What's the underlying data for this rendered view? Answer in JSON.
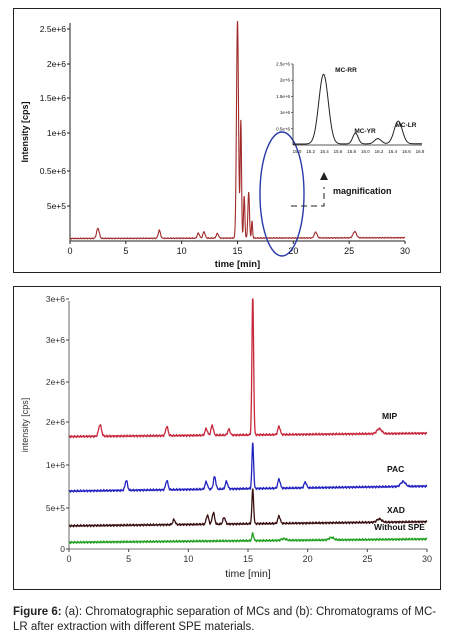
{
  "chart_data": [
    {
      "type": "line",
      "panel": "a",
      "xlabel": "time [min]",
      "ylabel": "Intensity [cps]",
      "xlim": [
        0,
        30
      ],
      "ylim": [
        0,
        2600000
      ],
      "xticks": [
        "0",
        "5",
        "10",
        "15",
        "20",
        "25",
        "30"
      ],
      "yticks": [
        "5e+5",
        "0.5e+6",
        "1e+6",
        "1.5e+6",
        "2e+6",
        "2.5e+6"
      ],
      "line_color": "#a02a2a",
      "baseline": 30000,
      "peaks": [
        {
          "x": 2.5,
          "y": 120000,
          "w": 0.12
        },
        {
          "x": 8.0,
          "y": 95000,
          "w": 0.1
        },
        {
          "x": 11.5,
          "y": 60000,
          "w": 0.1
        },
        {
          "x": 12.0,
          "y": 75000,
          "w": 0.1
        },
        {
          "x": 13.2,
          "y": 55000,
          "w": 0.1
        },
        {
          "x": 15.0,
          "y": 2600000,
          "w": 0.09
        },
        {
          "x": 15.3,
          "y": 1400000,
          "w": 0.06
        },
        {
          "x": 15.6,
          "y": 500000,
          "w": 0.06
        },
        {
          "x": 16.0,
          "y": 550000,
          "w": 0.07
        },
        {
          "x": 16.3,
          "y": 200000,
          "w": 0.05
        },
        {
          "x": 22.0,
          "y": 70000,
          "w": 0.12
        },
        {
          "x": 25.5,
          "y": 75000,
          "w": 0.15
        }
      ],
      "annotation": "magnification",
      "inset": {
        "xlim": [
          15.0,
          16.9
        ],
        "ylim": [
          0,
          2500000
        ],
        "xticks": [
          "15.0",
          "15.2",
          "15.4",
          "15.6",
          "15.8",
          "16.0",
          "16.2",
          "16.4",
          "16.6",
          "16.8"
        ],
        "yticks": [
          "0.5e+6",
          "1e+6",
          "1.5e+6",
          "2e+6",
          "2.5e+6"
        ],
        "labels": [
          "MC-RR",
          "MC-YR",
          "MC-LR"
        ],
        "peaks": [
          {
            "x": 15.45,
            "y": 2150000,
            "w": 0.07
          },
          {
            "x": 15.92,
            "y": 330000,
            "w": 0.04
          },
          {
            "x": 16.25,
            "y": 160000,
            "w": 0.05
          },
          {
            "x": 16.55,
            "y": 700000,
            "w": 0.06
          }
        ]
      }
    },
    {
      "type": "line",
      "panel": "b",
      "xlabel": "time [min]",
      "ylabel": "intensity [cps]",
      "xlim": [
        0,
        30
      ],
      "ylim": [
        0,
        3000000
      ],
      "xticks": [
        "0",
        "5",
        "10",
        "15",
        "20",
        "25",
        "30"
      ],
      "yticks": [
        "0",
        "5e+5",
        "1e+6",
        "2e+6",
        "2e+6",
        "3e+6",
        "3e+6"
      ],
      "series": [
        {
          "name": "MIP",
          "color": "#c8283c",
          "baseline": 1360000,
          "end": 1400000,
          "peaks": [
            {
              "x": 2.6,
              "y": 140000,
              "w": 0.12
            },
            {
              "x": 8.2,
              "y": 110000,
              "w": 0.1
            },
            {
              "x": 11.5,
              "y": 80000,
              "w": 0.1
            },
            {
              "x": 12.0,
              "y": 120000,
              "w": 0.1
            },
            {
              "x": 13.4,
              "y": 70000,
              "w": 0.1
            },
            {
              "x": 15.4,
              "y": 1700000,
              "w": 0.07
            },
            {
              "x": 17.6,
              "y": 100000,
              "w": 0.1
            },
            {
              "x": 26.0,
              "y": 60000,
              "w": 0.2
            }
          ]
        },
        {
          "name": "PAC",
          "color": "#2222c0",
          "baseline": 700000,
          "end": 760000,
          "peaks": [
            {
              "x": 4.8,
              "y": 120000,
              "w": 0.1
            },
            {
              "x": 8.2,
              "y": 110000,
              "w": 0.1
            },
            {
              "x": 11.5,
              "y": 90000,
              "w": 0.1
            },
            {
              "x": 12.2,
              "y": 150000,
              "w": 0.1
            },
            {
              "x": 13.2,
              "y": 90000,
              "w": 0.1
            },
            {
              "x": 15.4,
              "y": 550000,
              "w": 0.07
            },
            {
              "x": 17.6,
              "y": 110000,
              "w": 0.1
            },
            {
              "x": 19.8,
              "y": 70000,
              "w": 0.1
            },
            {
              "x": 28.0,
              "y": 60000,
              "w": 0.2
            }
          ]
        },
        {
          "name": "XAD",
          "color": "#3a1010",
          "baseline": 280000,
          "end": 330000,
          "peaks": [
            {
              "x": 8.8,
              "y": 60000,
              "w": 0.1
            },
            {
              "x": 11.6,
              "y": 110000,
              "w": 0.1
            },
            {
              "x": 12.1,
              "y": 140000,
              "w": 0.1
            },
            {
              "x": 13.0,
              "y": 80000,
              "w": 0.1
            },
            {
              "x": 15.4,
              "y": 420000,
              "w": 0.07
            },
            {
              "x": 17.6,
              "y": 90000,
              "w": 0.1
            },
            {
              "x": 26.0,
              "y": 40000,
              "w": 0.2
            }
          ]
        },
        {
          "name": "Without SPE",
          "color": "#22a022",
          "baseline": 80000,
          "end": 120000,
          "peaks": [
            {
              "x": 15.4,
              "y": 90000,
              "w": 0.07
            },
            {
              "x": 18.0,
              "y": 20000,
              "w": 0.2
            },
            {
              "x": 22.0,
              "y": 30000,
              "w": 0.2
            }
          ]
        }
      ]
    }
  ],
  "caption": {
    "label": "Figure 6:",
    "text": " (a): Chromatographic separation of MCs and  (b): Chromatograms of MC-LR after extraction with different SPE materials."
  }
}
